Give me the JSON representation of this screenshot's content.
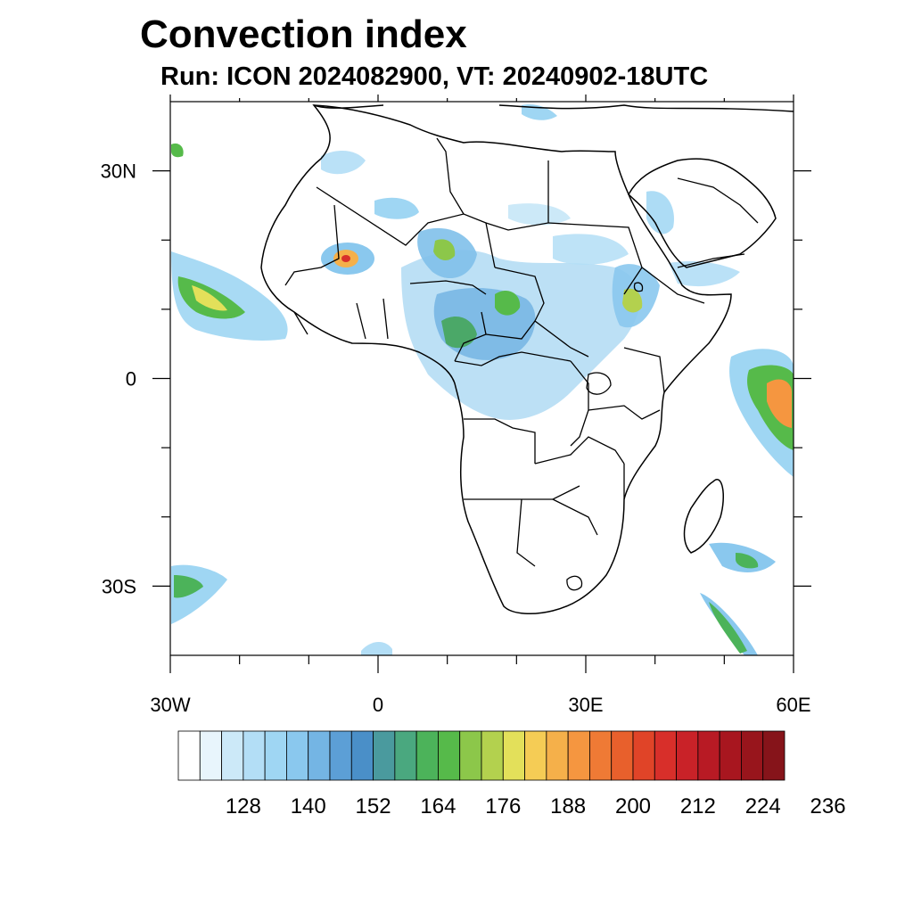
{
  "header": {
    "title": "Convection index",
    "subtitle": "Run: ICON 2024082900,  VT: 20240902-18UTC"
  },
  "map": {
    "region": "Africa",
    "lon_range": [
      -30,
      60
    ],
    "lat_range": [
      -40,
      40
    ],
    "lon_ticks": [
      {
        "value": -30,
        "label": "30W"
      },
      {
        "value": 0,
        "label": "0"
      },
      {
        "value": 30,
        "label": "30E"
      },
      {
        "value": 60,
        "label": "60E"
      }
    ],
    "lat_ticks": [
      {
        "value": 30,
        "label": "30N"
      },
      {
        "value": 0,
        "label": "0"
      },
      {
        "value": -30,
        "label": "30S"
      }
    ],
    "minor_lon_ticks": [
      -20,
      -10,
      10,
      20,
      40,
      50
    ],
    "minor_lat_ticks": [
      20,
      10,
      -10,
      -20
    ]
  },
  "colorbar": {
    "labels": [
      "128",
      "140",
      "152",
      "164",
      "176",
      "188",
      "200",
      "212",
      "224",
      "236"
    ],
    "colors": [
      "#ffffff",
      "#e8f5fc",
      "#cce9f8",
      "#b3def6",
      "#9fd6f3",
      "#8ac8ee",
      "#74b5e4",
      "#5c9fd6",
      "#4a8fc8",
      "#4a9a9e",
      "#4aa87f",
      "#4cb35a",
      "#56ba4a",
      "#8cc74a",
      "#b3d14e",
      "#e3e05a",
      "#f5cc55",
      "#f5b04a",
      "#f59640",
      "#ef7a35",
      "#e8602c",
      "#e04428",
      "#d82f2a",
      "#c92228",
      "#b81a24",
      "#a8161f",
      "#98151c",
      "#86141a"
    ]
  }
}
